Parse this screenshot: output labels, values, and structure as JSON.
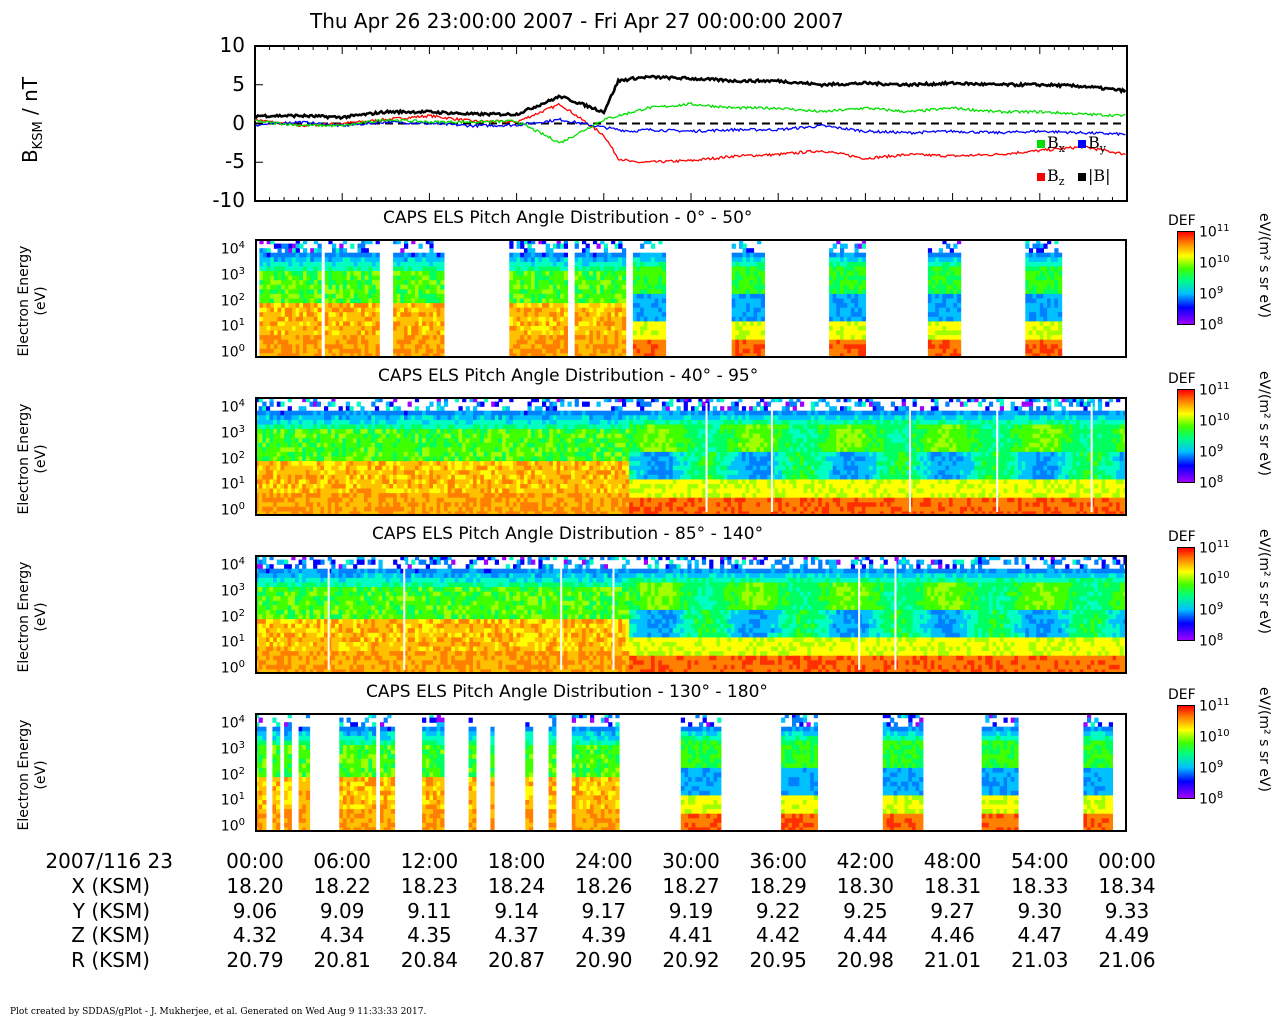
{
  "chart_data": [
    {
      "type": "line",
      "title": "Thu Apr 26 23:00:00 2007 - Fri Apr 27 00:00:00 2007",
      "ylabel": "B",
      "ylabel_sub": "KSM",
      "ylabel_unit": " / nT",
      "ylim": [
        -10,
        10
      ],
      "yticks": [
        "10",
        "5",
        "0",
        "-5",
        "-10"
      ],
      "x_minutes": [
        0,
        3,
        6,
        9,
        12,
        15,
        18,
        21,
        24,
        25,
        26,
        27,
        30,
        33,
        36,
        39,
        42,
        45,
        48,
        51,
        54,
        57,
        60
      ],
      "series": [
        {
          "name": "|B|",
          "color": "#000000",
          "values": [
            1.0,
            1.0,
            0.8,
            1.5,
            1.5,
            1.2,
            1.2,
            3.5,
            1.5,
            5.5,
            5.8,
            6.0,
            5.8,
            5.5,
            5.5,
            5.0,
            5.2,
            5.0,
            5.2,
            5.0,
            5.0,
            4.8,
            4.2
          ]
        },
        {
          "name": "B",
          "sub": "x",
          "color": "#00e000",
          "values": [
            0.3,
            -0.2,
            -0.3,
            0.5,
            0.2,
            0.2,
            0.3,
            -2.5,
            0.5,
            1.0,
            1.5,
            2.0,
            2.5,
            2.0,
            2.0,
            1.5,
            2.0,
            1.5,
            2.0,
            1.5,
            1.5,
            1.2,
            1.0
          ]
        },
        {
          "name": "B",
          "sub": "y",
          "color": "#0000ff",
          "values": [
            -0.2,
            0.2,
            -0.3,
            0.2,
            0.0,
            -0.3,
            -0.2,
            0.5,
            -0.5,
            -0.8,
            -1.0,
            -0.8,
            -1.0,
            -0.8,
            -0.8,
            -0.3,
            -1.0,
            -1.2,
            -1.0,
            -1.2,
            -1.0,
            -1.2,
            -1.4
          ]
        },
        {
          "name": "B",
          "sub": "z",
          "color": "#ff0000",
          "values": [
            0.5,
            -0.3,
            0.0,
            0.5,
            1.0,
            0.3,
            0.2,
            2.5,
            -1.5,
            -4.5,
            -5.0,
            -5.0,
            -4.8,
            -4.2,
            -4.0,
            -3.5,
            -4.5,
            -4.0,
            -4.2,
            -4.0,
            -3.5,
            -3.0,
            -4.0
          ]
        }
      ],
      "legend": "bottom-right"
    },
    {
      "type": "heatmap",
      "title": "CAPS ELS Pitch Angle Distribution - 0° - 50°",
      "ylabel": "Electron Energy",
      "yunit": "(eV)",
      "yscale": "log",
      "yticks": [
        "10",
        "10",
        "10",
        "10",
        "10"
      ],
      "ytick_exps": [
        "4",
        "3",
        "2",
        "1",
        "0"
      ],
      "colorbar": {
        "label": "DEF",
        "unit": "eV/(m² s sr eV)",
        "ticks": [
          "10",
          "10",
          "10",
          "10"
        ],
        "exps": [
          "11",
          "10",
          "9",
          "8"
        ]
      },
      "data_intervals_minutes": [
        [
          0.3,
          4.5
        ],
        [
          4.8,
          8.5
        ],
        [
          9.5,
          13.0
        ],
        [
          17.5,
          21.5
        ],
        [
          22.0,
          25.5
        ],
        [
          26.0,
          28.2
        ],
        [
          32.8,
          35.0
        ],
        [
          39.5,
          41.8
        ],
        [
          46.3,
          48.5
        ],
        [
          53.0,
          55.3
        ]
      ]
    },
    {
      "type": "heatmap",
      "title": "CAPS ELS Pitch Angle Distribution - 40° - 95°",
      "ylabel": "Electron Energy",
      "yunit": "(eV)",
      "yscale": "log",
      "yticks": [
        "10",
        "10",
        "10",
        "10",
        "10"
      ],
      "ytick_exps": [
        "4",
        "3",
        "2",
        "1",
        "0"
      ],
      "colorbar": {
        "label": "DEF",
        "unit": "eV/(m² s sr eV)",
        "ticks": [
          "10",
          "10",
          "10",
          "10"
        ],
        "exps": [
          "11",
          "10",
          "9",
          "8"
        ]
      },
      "data_intervals_minutes": [
        [
          0,
          60
        ]
      ]
    },
    {
      "type": "heatmap",
      "title": "CAPS ELS Pitch Angle Distribution - 85° - 140°",
      "ylabel": "Electron Energy",
      "yunit": "(eV)",
      "yscale": "log",
      "yticks": [
        "10",
        "10",
        "10",
        "10",
        "10"
      ],
      "ytick_exps": [
        "4",
        "3",
        "2",
        "1",
        "0"
      ],
      "colorbar": {
        "label": "DEF",
        "unit": "eV/(m² s sr eV)",
        "ticks": [
          "10",
          "10",
          "10",
          "10"
        ],
        "exps": [
          "11",
          "10",
          "9",
          "8"
        ]
      },
      "data_intervals_minutes": [
        [
          0,
          60
        ]
      ]
    },
    {
      "type": "heatmap",
      "title": "CAPS ELS Pitch Angle Distribution - 130° - 180°",
      "ylabel": "Electron Energy",
      "yunit": "(eV)",
      "yscale": "log",
      "yticks": [
        "10",
        "10",
        "10",
        "10",
        "10"
      ],
      "ytick_exps": [
        "4",
        "3",
        "2",
        "1",
        "0"
      ],
      "colorbar": {
        "label": "DEF",
        "unit": "eV/(m² s sr eV)",
        "ticks": [
          "10",
          "10",
          "10",
          "10"
        ],
        "exps": [
          "11",
          "10",
          "9",
          "8"
        ]
      },
      "data_intervals_minutes": [
        [
          0.0,
          0.7
        ],
        [
          1.2,
          1.6
        ],
        [
          2.0,
          2.5
        ],
        [
          3.0,
          3.7
        ],
        [
          5.8,
          8.2
        ],
        [
          8.6,
          9.4
        ],
        [
          11.5,
          12.8
        ],
        [
          14.7,
          15.0
        ],
        [
          16.2,
          16.4
        ],
        [
          18.6,
          19.0
        ],
        [
          20.2,
          20.6
        ],
        [
          21.8,
          25.0
        ],
        [
          29.3,
          32.0
        ],
        [
          36.2,
          38.6
        ],
        [
          43.2,
          45.8
        ],
        [
          50.0,
          52.3
        ],
        [
          57.0,
          58.8
        ]
      ]
    }
  ],
  "time_axis": {
    "row_label": "2007/116 23",
    "ticks": [
      "00:00",
      "06:00",
      "12:00",
      "18:00",
      "24:00",
      "30:00",
      "36:00",
      "42:00",
      "48:00",
      "54:00",
      "00:00"
    ]
  },
  "ephemeris": [
    {
      "label": "X (KSM)",
      "values": [
        "18.20",
        "18.22",
        "18.23",
        "18.24",
        "18.26",
        "18.27",
        "18.29",
        "18.30",
        "18.31",
        "18.33",
        "18.34"
      ]
    },
    {
      "label": "Y (KSM)",
      "values": [
        "9.06",
        "9.09",
        "9.11",
        "9.14",
        "9.17",
        "9.19",
        "9.22",
        "9.25",
        "9.27",
        "9.30",
        "9.33"
      ]
    },
    {
      "label": "Z (KSM)",
      "values": [
        "4.32",
        "4.34",
        "4.35",
        "4.37",
        "4.39",
        "4.41",
        "4.42",
        "4.44",
        "4.46",
        "4.47",
        "4.49"
      ]
    },
    {
      "label": "R (KSM)",
      "values": [
        "20.79",
        "20.81",
        "20.84",
        "20.87",
        "20.90",
        "20.92",
        "20.95",
        "20.98",
        "21.01",
        "21.03",
        "21.06"
      ]
    }
  ],
  "footer": "Plot created by SDDAS/gPlot - J. Mukherjee, et al.  Generated on Wed Aug 9 11:33:33 2017."
}
